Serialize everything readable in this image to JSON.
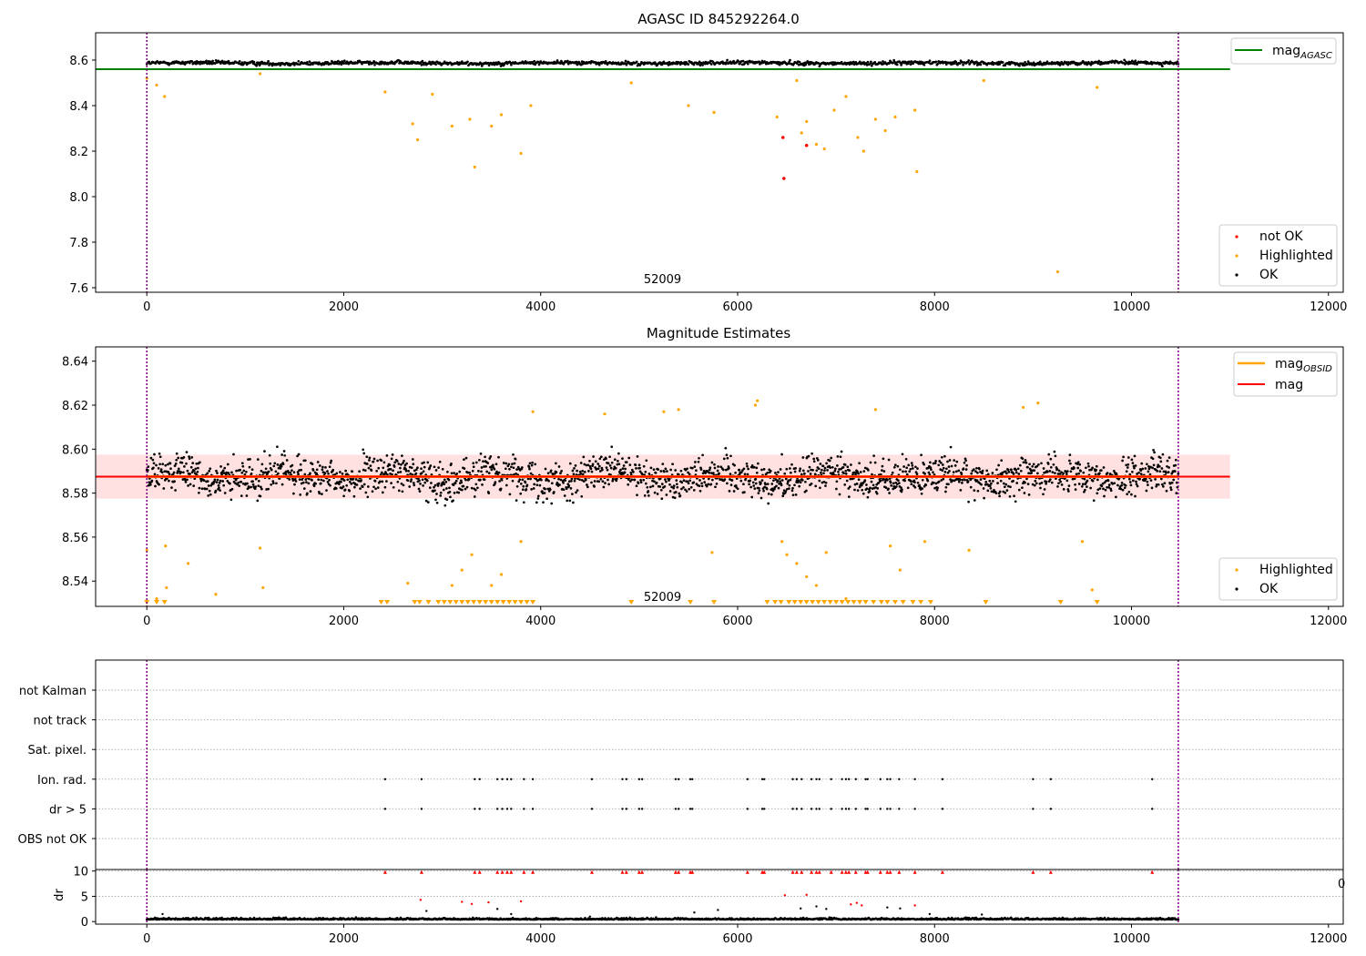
{
  "chart_data": [
    {
      "type": "scatter",
      "title": "AGASC ID 845292264.0",
      "xlim": [
        -520,
        12150
      ],
      "ylim": [
        7.58,
        8.72
      ],
      "xticks": [
        0,
        2000,
        4000,
        6000,
        8000,
        10000,
        12000
      ],
      "yticks": [
        7.6,
        7.8,
        8.0,
        8.2,
        8.4,
        8.6
      ],
      "ytick_format": 1,
      "grid": false,
      "legend_placement": "bottom-right",
      "vlines": [
        0,
        10475
      ],
      "vline_color": "#800080",
      "annotations": [
        {
          "text": "52009",
          "x": 5237,
          "y": 7.62
        }
      ],
      "reference_line": {
        "name": "mag_AGASC",
        "label_main": "mag",
        "label_sub": "AGASC",
        "y": 8.56,
        "x": [
          -520,
          11000
        ],
        "color": "#008000"
      },
      "series": [
        {
          "name": "not OK",
          "color": "#ff0000",
          "points": [
            [
              6460,
              8.26
            ],
            [
              6470,
              8.08
            ],
            [
              6700,
              8.225
            ]
          ]
        },
        {
          "name": "Highlighted",
          "color": "#ffa500",
          "points": [
            [
              0,
              8.52
            ],
            [
              100,
              8.49
            ],
            [
              180,
              8.44
            ],
            [
              1150,
              8.54
            ],
            [
              2420,
              8.46
            ],
            [
              2700,
              8.32
            ],
            [
              2750,
              8.25
            ],
            [
              2900,
              8.45
            ],
            [
              3100,
              8.31
            ],
            [
              3280,
              8.34
            ],
            [
              3330,
              8.13
            ],
            [
              3500,
              8.31
            ],
            [
              3600,
              8.36
            ],
            [
              3800,
              8.19
            ],
            [
              3900,
              8.4
            ],
            [
              4920,
              8.5
            ],
            [
              5500,
              8.4
            ],
            [
              5760,
              8.37
            ],
            [
              6400,
              8.35
            ],
            [
              6600,
              8.51
            ],
            [
              6650,
              8.28
            ],
            [
              6700,
              8.33
            ],
            [
              6800,
              8.23
            ],
            [
              6880,
              8.21
            ],
            [
              6980,
              8.38
            ],
            [
              7100,
              8.44
            ],
            [
              7220,
              8.26
            ],
            [
              7280,
              8.2
            ],
            [
              7400,
              8.34
            ],
            [
              7500,
              8.29
            ],
            [
              7600,
              8.35
            ],
            [
              7800,
              8.38
            ],
            [
              7820,
              8.11
            ],
            [
              8500,
              8.51
            ],
            [
              9250,
              7.67
            ],
            [
              9650,
              8.48
            ]
          ]
        },
        {
          "name": "OK",
          "color": "#000000",
          "mean": 8.587,
          "spread": 0.007
        }
      ]
    },
    {
      "type": "scatter",
      "title": "Magnitude Estimates",
      "xlim": [
        -520,
        12150
      ],
      "ylim": [
        8.5285,
        8.6465
      ],
      "xticks": [
        0,
        2000,
        4000,
        6000,
        8000,
        10000,
        12000
      ],
      "yticks": [
        8.54,
        8.56,
        8.58,
        8.6,
        8.62,
        8.64
      ],
      "ytick_format": 2,
      "grid": false,
      "legend_placement": "bottom-right",
      "vlines": [
        0,
        10475
      ],
      "vline_color": "#800080",
      "annotations": [
        {
          "text": "52009",
          "x": 5237,
          "y": 8.531
        }
      ],
      "band": {
        "x": [
          -520,
          11000
        ],
        "y": [
          8.5775,
          8.5975
        ],
        "color": "#ffb3b3"
      },
      "reference_lines": [
        {
          "name": "mag_OBSID",
          "label_main": "mag",
          "label_sub": "OBSID",
          "y": 8.5875,
          "x": [
            0,
            10475
          ],
          "color": "#ffa500"
        },
        {
          "name": "mag",
          "label_main": "mag",
          "y": 8.5875,
          "x": [
            -520,
            11000
          ],
          "color": "#ff0000"
        }
      ],
      "series": [
        {
          "name": "Highlighted",
          "color": "#ffa500",
          "points": [
            [
              0,
              8.554
            ],
            [
              100,
              8.532
            ],
            [
              190,
              8.556
            ],
            [
              200,
              8.537
            ],
            [
              420,
              8.548
            ],
            [
              700,
              8.534
            ],
            [
              1150,
              8.555
            ],
            [
              1180,
              8.537
            ],
            [
              2650,
              8.539
            ],
            [
              3100,
              8.538
            ],
            [
              3200,
              8.545
            ],
            [
              3300,
              8.552
            ],
            [
              3500,
              8.538
            ],
            [
              3600,
              8.543
            ],
            [
              3800,
              8.558
            ],
            [
              3920,
              8.617
            ],
            [
              4650,
              8.616
            ],
            [
              5250,
              8.617
            ],
            [
              5400,
              8.618
            ],
            [
              5740,
              8.553
            ],
            [
              6180,
              8.62
            ],
            [
              6200,
              8.622
            ],
            [
              6450,
              8.558
            ],
            [
              6500,
              8.552
            ],
            [
              6600,
              8.548
            ],
            [
              6700,
              8.542
            ],
            [
              6800,
              8.538
            ],
            [
              6900,
              8.553
            ],
            [
              7100,
              8.532
            ],
            [
              7400,
              8.618
            ],
            [
              7550,
              8.556
            ],
            [
              7650,
              8.545
            ],
            [
              7900,
              8.558
            ],
            [
              8350,
              8.554
            ],
            [
              8900,
              8.619
            ],
            [
              9050,
              8.621
            ],
            [
              9500,
              8.558
            ],
            [
              9600,
              8.536
            ]
          ]
        },
        {
          "name": "Highlighted (clipped below axis)",
          "color": "#ffa500",
          "x_values": [
            0,
            100,
            180,
            2380,
            2440,
            2720,
            2770,
            2860,
            2960,
            3020,
            3080,
            3140,
            3200,
            3260,
            3320,
            3380,
            3440,
            3500,
            3560,
            3620,
            3680,
            3740,
            3800,
            3860,
            3920,
            4920,
            5520,
            5760,
            6300,
            6380,
            6440,
            6520,
            6580,
            6640,
            6700,
            6760,
            6820,
            6880,
            6940,
            7000,
            7060,
            7120,
            7180,
            7240,
            7300,
            7380,
            7460,
            7520,
            7600,
            7680,
            7780,
            7860,
            7960,
            8520,
            9280,
            9650
          ]
        },
        {
          "name": "OK",
          "color": "#000000",
          "mean": 8.5875,
          "spread": 0.007
        }
      ]
    },
    {
      "type": "scatter",
      "xlim": [
        -520,
        12150
      ],
      "categories": [
        "OBS not OK",
        "dr > 5",
        "Ion. rad.",
        "Sat. pixel.",
        "not track",
        "not Kalman"
      ],
      "grid": true,
      "vlines": [
        0,
        10475
      ],
      "vline_color": "#800080",
      "flag_x_values": [
        2420,
        2790,
        3330,
        3380,
        3560,
        3610,
        3660,
        3700,
        3830,
        3920,
        4520,
        4830,
        4870,
        5000,
        5030,
        5370,
        5400,
        5520,
        5540,
        6100,
        6250,
        6270,
        6560,
        6600,
        6650,
        6750,
        6800,
        6830,
        6950,
        7060,
        7100,
        7130,
        7200,
        7300,
        7320,
        7450,
        7520,
        7550,
        7640,
        7800,
        8080,
        9000,
        9180,
        10210
      ],
      "flag_categories": [
        "Ion. rad.",
        "dr > 5"
      ],
      "flag_color": "#000000"
    },
    {
      "type": "scatter",
      "ylabel": "dr",
      "xlim": [
        -520,
        12150
      ],
      "ylim": [
        -0.5,
        10.3
      ],
      "xticks": [
        0,
        2000,
        4000,
        6000,
        8000,
        10000,
        12000
      ],
      "yticks": [
        0,
        5,
        10
      ],
      "ytick_format": 0,
      "grid": true,
      "vlines": [
        0,
        10475
      ],
      "vline_color": "#800080",
      "clipped_tick_label": "0",
      "series": [
        {
          "name": "OK",
          "color": "#000000",
          "mean": 0.4,
          "spread": 0.35,
          "outliers": [
            [
              160,
              1.5
            ],
            [
              2780,
              4.3
            ],
            [
              2840,
              2.1
            ],
            [
              3200,
              3.9
            ],
            [
              3300,
              3.5
            ],
            [
              3470,
              3.8
            ],
            [
              3560,
              2.5
            ],
            [
              3700,
              1.5
            ],
            [
              3800,
              4.0
            ],
            [
              4500,
              1.0
            ],
            [
              5560,
              1.8
            ],
            [
              5800,
              2.3
            ],
            [
              6480,
              5.2
            ],
            [
              6640,
              2.6
            ],
            [
              6700,
              5.3
            ],
            [
              6800,
              3.0
            ],
            [
              6900,
              2.5
            ],
            [
              7150,
              3.4
            ],
            [
              7210,
              3.7
            ],
            [
              7260,
              3.2
            ],
            [
              7520,
              2.8
            ],
            [
              7650,
              2.6
            ],
            [
              7800,
              3.2
            ],
            [
              7950,
              1.5
            ],
            [
              8480,
              1.4
            ]
          ]
        },
        {
          "name": "flag marks at 10",
          "color": "#ff0000",
          "y": 9.8,
          "x_values": [
            2420,
            2790,
            3330,
            3380,
            3560,
            3610,
            3660,
            3700,
            3830,
            3920,
            4520,
            4830,
            4870,
            5000,
            5030,
            5370,
            5400,
            5520,
            5540,
            6100,
            6250,
            6270,
            6560,
            6600,
            6650,
            6750,
            6800,
            6830,
            6950,
            7060,
            7100,
            7130,
            7200,
            7300,
            7320,
            7450,
            7520,
            7550,
            7640,
            7800,
            8080,
            9000,
            9180,
            10210
          ]
        }
      ]
    }
  ],
  "observation": {
    "obsid": "52009",
    "n_samples": 10475
  },
  "legends": {
    "top": {
      "reference": {
        "main": "mag",
        "sub": "AGASC"
      },
      "items": [
        "not OK",
        "Highlighted",
        "OK"
      ]
    },
    "middle": {
      "lines": [
        {
          "main": "mag",
          "sub": "OBSID"
        },
        {
          "main": "mag"
        }
      ],
      "items": [
        "Highlighted",
        "OK"
      ]
    }
  },
  "colors": {
    "ok": "#000000",
    "highlighted": "#ffa500",
    "not_ok": "#ff0000",
    "agasc_line": "#008000",
    "vline": "#800080",
    "band": "#ffb3b3"
  }
}
